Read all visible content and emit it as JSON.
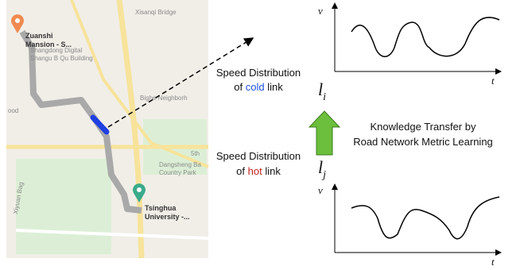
{
  "map": {
    "labels": [
      "Xisanqi Bridge",
      "Shangdong Digital",
      "Shangu B Qu Building",
      "Bighe Neighborh",
      "ood",
      "5th",
      "Dangsheng Ba",
      "Country Park",
      "Xiyuan Bag"
    ],
    "origin": [
      "Zuanshi",
      "Mansion - S..."
    ],
    "destination": [
      "Tsinghua",
      "University -..."
    ]
  },
  "cold_text": {
    "line1": "Speed Distribution",
    "prefix": "of",
    "word": "cold",
    "suffix": "link"
  },
  "hot_text": {
    "line1": "Speed Distribution",
    "prefix": "of",
    "word": "hot",
    "suffix": "link"
  },
  "link_i": {
    "symbol": "l",
    "subscript": "i"
  },
  "link_j": {
    "symbol": "l",
    "subscript": "j"
  },
  "transfer": [
    "Knowledge Transfer by",
    "Road Network Metric Learning"
  ],
  "top_plot": {
    "y_label": "v",
    "x_label": "t"
  },
  "bottom_plot": {
    "y_label": "v",
    "x_label": "t"
  }
}
